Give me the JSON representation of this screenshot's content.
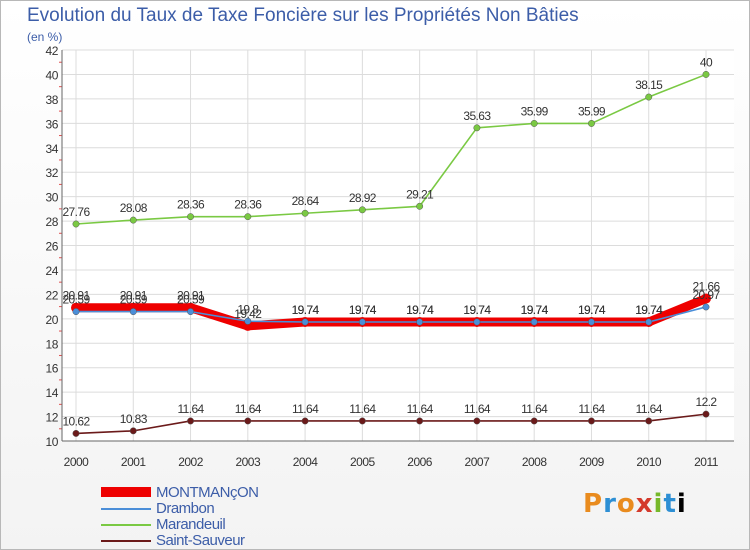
{
  "chart_data": {
    "type": "line",
    "title": "Evolution du Taux de Taxe Foncière sur les Propriétés Non Bâties",
    "ylabel": "(en %)",
    "xlabel": "",
    "x": [
      "2000",
      "2001",
      "2002",
      "2003",
      "2004",
      "2005",
      "2006",
      "2007",
      "2008",
      "2009",
      "2010",
      "2011"
    ],
    "ylim": [
      10,
      42
    ],
    "yticks": [
      "10",
      "12",
      "14",
      "16",
      "18",
      "20",
      "22",
      "24",
      "26",
      "28",
      "30",
      "32",
      "34",
      "36",
      "38",
      "40",
      "42"
    ],
    "series": [
      {
        "name": "MONTMANçON",
        "color": "#ee0000",
        "values": [
          20.91,
          20.91,
          20.91,
          19.42,
          19.74,
          19.74,
          19.74,
          19.74,
          19.74,
          19.74,
          19.74,
          21.66
        ],
        "labels": [
          "20.91",
          "20.91",
          "20.91",
          "19.42",
          "19.74",
          "19.74",
          "19.74",
          "19.74",
          "19.74",
          "19.74",
          "19.74",
          "21.66"
        ]
      },
      {
        "name": "Drambon",
        "color": "#4b8ed8",
        "values": [
          20.59,
          20.59,
          20.59,
          19.8,
          19.74,
          19.74,
          19.74,
          19.74,
          19.74,
          19.74,
          19.74,
          20.97
        ],
        "labels": [
          "20.59",
          "20.59",
          "20.59",
          "19.8",
          "19.74",
          "19.74",
          "19.74",
          "19.74",
          "19.74",
          "19.74",
          "19.74",
          "20.97"
        ]
      },
      {
        "name": "Marandeuil",
        "color": "#7ac943",
        "values": [
          27.76,
          28.08,
          28.36,
          28.36,
          28.64,
          28.92,
          29.21,
          35.63,
          35.99,
          35.99,
          38.15,
          40
        ],
        "labels": [
          "27.76",
          "28.08",
          "28.36",
          "28.36",
          "28.64",
          "28.92",
          "29.21",
          "35.63",
          "35.99",
          "35.99",
          "38.15",
          "40"
        ]
      },
      {
        "name": "Saint-Sauveur",
        "color": "#6b1a1a",
        "values": [
          10.62,
          10.83,
          11.64,
          11.64,
          11.64,
          11.64,
          11.64,
          11.64,
          11.64,
          11.64,
          11.64,
          12.2
        ],
        "labels": [
          "10.62",
          "10.83",
          "11.64",
          "11.64",
          "11.64",
          "11.64",
          "11.64",
          "11.64",
          "11.64",
          "11.64",
          "11.64",
          "12.2"
        ]
      }
    ]
  },
  "brand": {
    "letters": [
      "P",
      "r",
      "o",
      "x",
      "i",
      "t",
      "i"
    ]
  }
}
